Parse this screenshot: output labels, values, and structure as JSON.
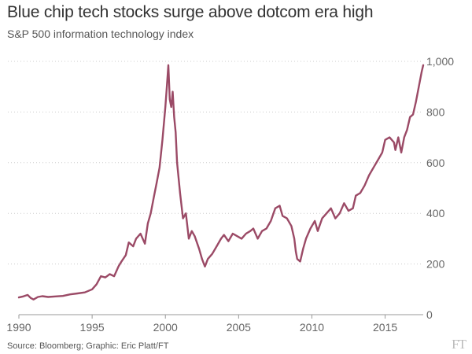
{
  "header": {
    "title": "Blue chip tech stocks surge above dotcom era high",
    "subtitle": "S&P 500 information technology index"
  },
  "footer": {
    "source": "Source: Bloomberg; Graphic: Eric Platt/FT",
    "logo": "FT"
  },
  "colors": {
    "line": "#9b4a66",
    "gridline": "#cccccc",
    "axis": "#999999"
  },
  "chart_data": {
    "type": "line",
    "title": "Blue chip tech stocks surge above dotcom era high",
    "subtitle": "S&P 500 information technology index",
    "xlabel": "",
    "ylabel": "",
    "xlim": [
      1990,
      2017.6
    ],
    "ylim": [
      0,
      1000
    ],
    "x_ticks": [
      1990,
      1995,
      2000,
      2005,
      2010,
      2015
    ],
    "x_tick_labels": [
      "1990",
      "1995",
      "2000",
      "2005",
      "2010",
      "2015"
    ],
    "y_ticks": [
      0,
      200,
      400,
      600,
      800,
      1000
    ],
    "y_tick_labels": [
      "0",
      "200",
      "400",
      "600",
      "800",
      "1,000"
    ],
    "grid": "horizontal dotted",
    "legend": "none",
    "series": [
      {
        "name": "S&P 500 information technology index",
        "x": [
          1990.0,
          1990.3,
          1990.6,
          1990.8,
          1991.0,
          1991.3,
          1991.6,
          1992.0,
          1992.5,
          1993.0,
          1993.5,
          1994.0,
          1994.5,
          1995.0,
          1995.3,
          1995.6,
          1995.9,
          1996.2,
          1996.5,
          1996.8,
          1997.0,
          1997.3,
          1997.5,
          1997.8,
          1998.0,
          1998.3,
          1998.6,
          1998.8,
          1999.0,
          1999.2,
          1999.4,
          1999.6,
          1999.8,
          2000.0,
          2000.1,
          2000.2,
          2000.3,
          2000.4,
          2000.5,
          2000.6,
          2000.7,
          2000.8,
          2001.0,
          2001.2,
          2001.4,
          2001.6,
          2001.8,
          2002.0,
          2002.3,
          2002.5,
          2002.7,
          2002.9,
          2003.2,
          2003.5,
          2003.8,
          2004.0,
          2004.3,
          2004.6,
          2004.9,
          2005.2,
          2005.5,
          2005.8,
          2006.0,
          2006.3,
          2006.6,
          2006.9,
          2007.2,
          2007.5,
          2007.8,
          2008.0,
          2008.3,
          2008.6,
          2008.8,
          2008.9,
          2009.0,
          2009.2,
          2009.4,
          2009.6,
          2009.9,
          2010.2,
          2010.4,
          2010.7,
          2011.0,
          2011.3,
          2011.6,
          2011.9,
          2012.2,
          2012.5,
          2012.8,
          2013.0,
          2013.3,
          2013.6,
          2013.9,
          2014.2,
          2014.5,
          2014.8,
          2015.0,
          2015.3,
          2015.6,
          2015.7,
          2015.9,
          2016.1,
          2016.3,
          2016.5,
          2016.7,
          2016.9,
          2017.1,
          2017.3,
          2017.5,
          2017.6
        ],
        "values": [
          68,
          72,
          78,
          66,
          60,
          70,
          73,
          70,
          72,
          74,
          80,
          84,
          88,
          100,
          120,
          152,
          147,
          160,
          152,
          190,
          210,
          235,
          285,
          270,
          300,
          320,
          280,
          360,
          400,
          460,
          520,
          580,
          690,
          820,
          900,
          985,
          850,
          820,
          880,
          780,
          720,
          600,
          480,
          380,
          400,
          300,
          330,
          310,
          260,
          220,
          190,
          220,
          240,
          270,
          300,
          315,
          290,
          320,
          310,
          300,
          320,
          330,
          340,
          300,
          330,
          340,
          370,
          420,
          430,
          390,
          380,
          350,
          300,
          250,
          220,
          210,
          260,
          300,
          340,
          370,
          330,
          380,
          400,
          420,
          380,
          400,
          440,
          410,
          420,
          470,
          480,
          510,
          550,
          580,
          610,
          640,
          690,
          700,
          680,
          650,
          700,
          640,
          700,
          730,
          780,
          790,
          840,
          900,
          960,
          985
        ]
      }
    ]
  }
}
